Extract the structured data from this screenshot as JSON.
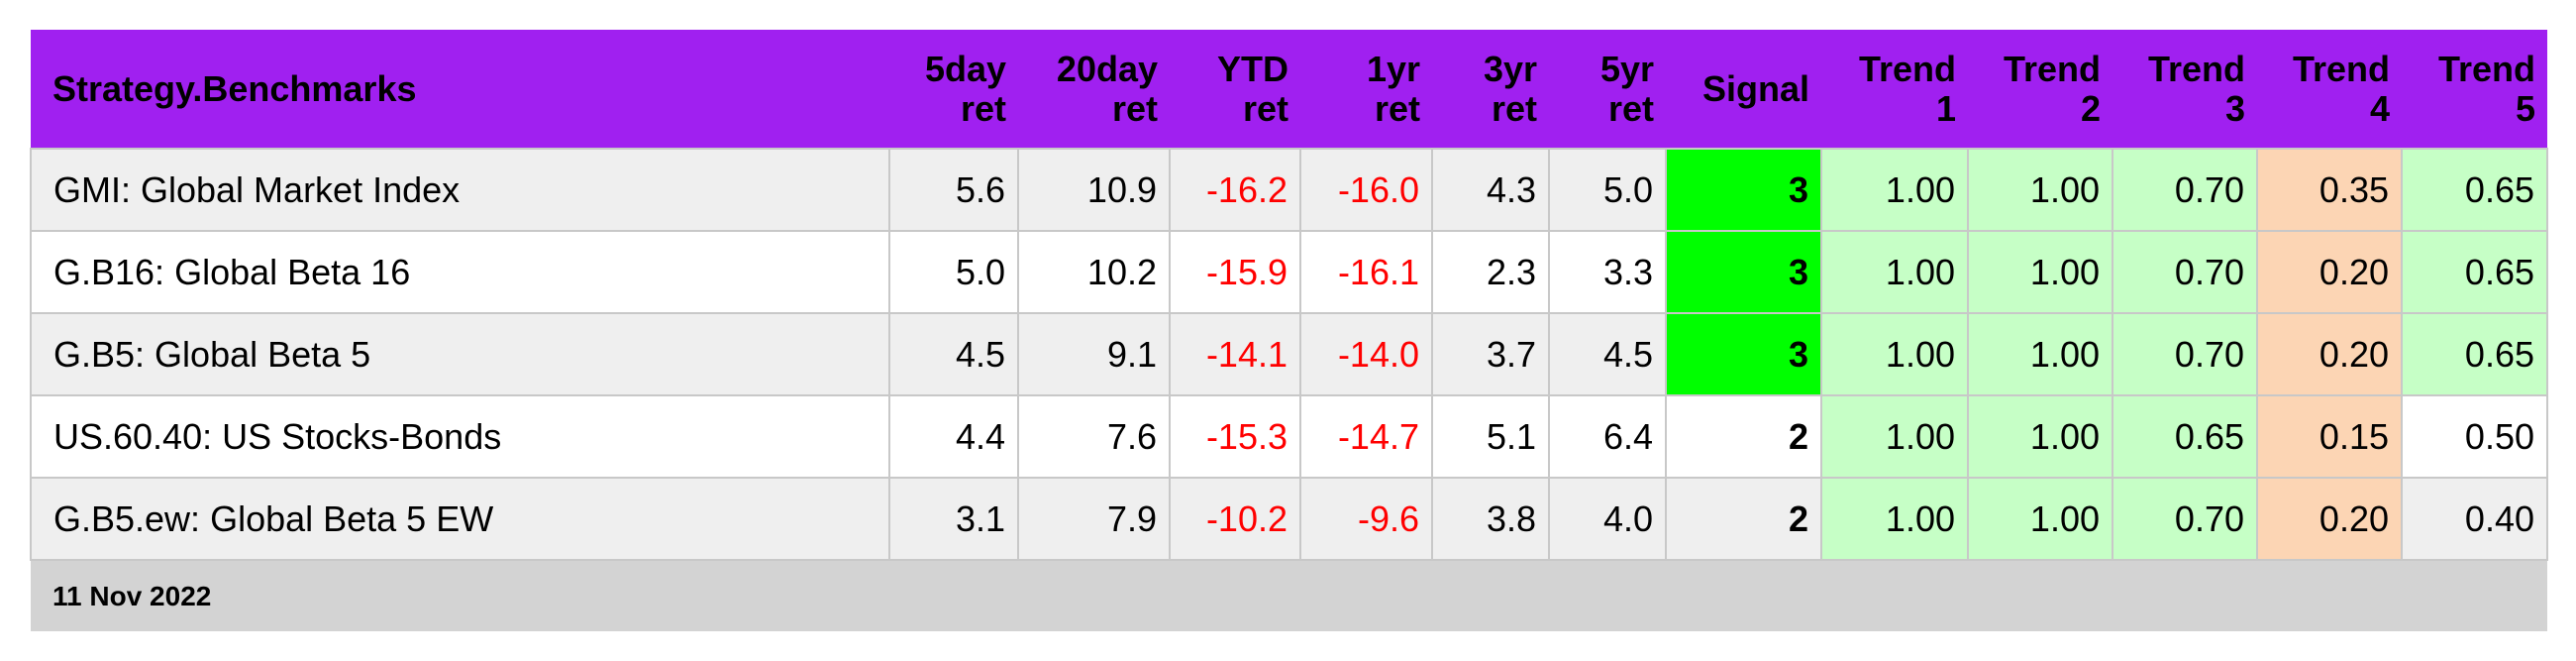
{
  "table": {
    "columns": [
      "Strategy.Benchmarks",
      "5day\nret",
      "20day\nret",
      "YTD\nret",
      "1yr\nret",
      "3yr\nret",
      "5yr\nret",
      "Signal",
      "Trend\n1",
      "Trend\n2",
      "Trend\n3",
      "Trend\n4",
      "Trend\n5"
    ],
    "rows": [
      [
        "GMI: Global Market Index",
        "5.6",
        "10.9",
        "-16.2",
        "-16.0",
        "4.3",
        "5.0",
        "3",
        "1.00",
        "1.00",
        "0.70",
        "0.35",
        "0.65"
      ],
      [
        "G.B16: Global Beta 16",
        "5.0",
        "10.2",
        "-15.9",
        "-16.1",
        "2.3",
        "3.3",
        "3",
        "1.00",
        "1.00",
        "0.70",
        "0.20",
        "0.65"
      ],
      [
        "G.B5: Global Beta 5",
        "4.5",
        "9.1",
        "-14.1",
        "-14.0",
        "3.7",
        "4.5",
        "3",
        "1.00",
        "1.00",
        "0.70",
        "0.20",
        "0.65"
      ],
      [
        "US.60.40: US Stocks-Bonds",
        "4.4",
        "7.6",
        "-15.3",
        "-14.7",
        "5.1",
        "6.4",
        "2",
        "1.00",
        "1.00",
        "0.65",
        "0.15",
        "0.50"
      ],
      [
        "G.B5.ew: Global Beta 5 EW",
        "3.1",
        "7.9",
        "-10.2",
        "-9.6",
        "3.8",
        "4.0",
        "2",
        "1.00",
        "1.00",
        "0.70",
        "0.20",
        "0.40"
      ]
    ],
    "row_colors": [
      "#efefef",
      "#ffffff",
      "#efefef",
      "#ffffff",
      "#efefef"
    ],
    "cell_colors": [
      [
        null,
        null,
        null,
        null,
        null,
        null,
        null,
        "#00ff00",
        "#c6ffc6",
        "#c6ffc6",
        "#c6ffc6",
        "#fcd5b4",
        "#c6ffc6"
      ],
      [
        null,
        null,
        null,
        null,
        null,
        null,
        null,
        "#00ff00",
        "#c6ffc6",
        "#c6ffc6",
        "#c6ffc6",
        "#fcd5b4",
        "#c6ffc6"
      ],
      [
        null,
        null,
        null,
        null,
        null,
        null,
        null,
        "#00ff00",
        "#c6ffc6",
        "#c6ffc6",
        "#c6ffc6",
        "#fcd5b4",
        "#c6ffc6"
      ],
      [
        null,
        null,
        null,
        null,
        null,
        null,
        null,
        null,
        "#c6ffc6",
        "#c6ffc6",
        "#c6ffc6",
        "#fcd5b4",
        null
      ],
      [
        null,
        null,
        null,
        null,
        null,
        null,
        null,
        null,
        "#c6ffc6",
        "#c6ffc6",
        "#c6ffc6",
        "#fcd5b4",
        null
      ]
    ],
    "header_color": "#a020f0",
    "negative_color": "#ff0000",
    "footer": "11 Nov 2022"
  }
}
